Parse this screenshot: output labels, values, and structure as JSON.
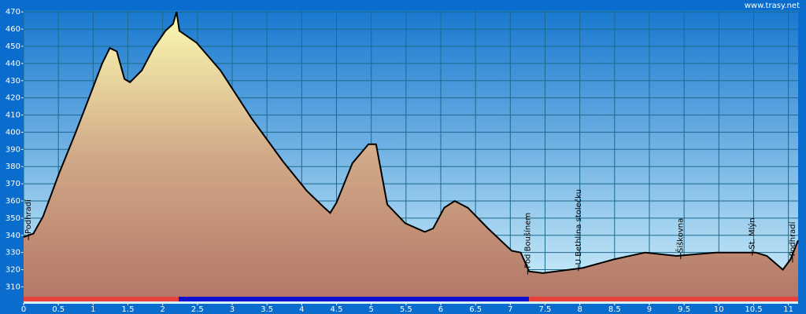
{
  "chart_data": {
    "type": "area",
    "watermark": "www.trasy.net",
    "x": [
      0,
      0.14,
      0.28,
      0.51,
      0.74,
      0.96,
      1.13,
      1.24,
      1.34,
      1.45,
      1.53,
      1.7,
      1.87,
      2.04,
      2.15,
      2.2,
      2.24,
      2.49,
      2.83,
      3.28,
      3.73,
      4.07,
      4.3,
      4.41,
      4.5,
      4.73,
      4.96,
      5.07,
      5.23,
      5.49,
      5.77,
      5.89,
      6.05,
      6.2,
      6.39,
      6.68,
      7.02,
      7.15,
      7.27,
      7.47,
      8.04,
      8.49,
      8.94,
      9.39,
      9.96,
      10.53,
      10.69,
      10.92,
      11.03,
      11.14
    ],
    "values": [
      339,
      341,
      351,
      376,
      399,
      422,
      440,
      449,
      447,
      431,
      429,
      436,
      449,
      459,
      463,
      470,
      459,
      452,
      436,
      408,
      383,
      366,
      357,
      353,
      359,
      382,
      393,
      393,
      358,
      347,
      342,
      344,
      356,
      360,
      356,
      344,
      331,
      330,
      319,
      318,
      321,
      326,
      330,
      328,
      330,
      330,
      328,
      320,
      326,
      337
    ],
    "xlim": [
      0,
      11.14
    ],
    "ylim": [
      307,
      471
    ],
    "xticks": [
      0,
      0.5,
      1,
      1.5,
      2,
      2.5,
      3,
      3.5,
      4,
      4.5,
      5,
      5.5,
      6,
      6.5,
      7,
      7.5,
      8,
      8.5,
      9,
      9.5,
      10,
      10.5,
      11
    ],
    "yticks": [
      310,
      320,
      330,
      340,
      350,
      360,
      370,
      380,
      390,
      400,
      410,
      420,
      430,
      440,
      450,
      460,
      470
    ],
    "grid": true,
    "line_color": "#000000",
    "waypoints": [
      {
        "label": "Podhradí",
        "x": 0.07
      },
      {
        "label": "Pod Boušínem",
        "x": 7.25
      },
      {
        "label": "U Bethlina stolečku",
        "x": 7.98
      },
      {
        "label": "Šiškovna",
        "x": 9.45
      },
      {
        "label": "St. Mlýn",
        "x": 10.48
      },
      {
        "label": "Podhradí",
        "x": 11.06
      }
    ],
    "segments": [
      {
        "from": 0,
        "to": 2.23,
        "color": "#e8423a"
      },
      {
        "from": 2.23,
        "to": 7.27,
        "color": "#1010d0"
      },
      {
        "from": 7.27,
        "to": 11.14,
        "color": "#e8423a"
      }
    ]
  }
}
